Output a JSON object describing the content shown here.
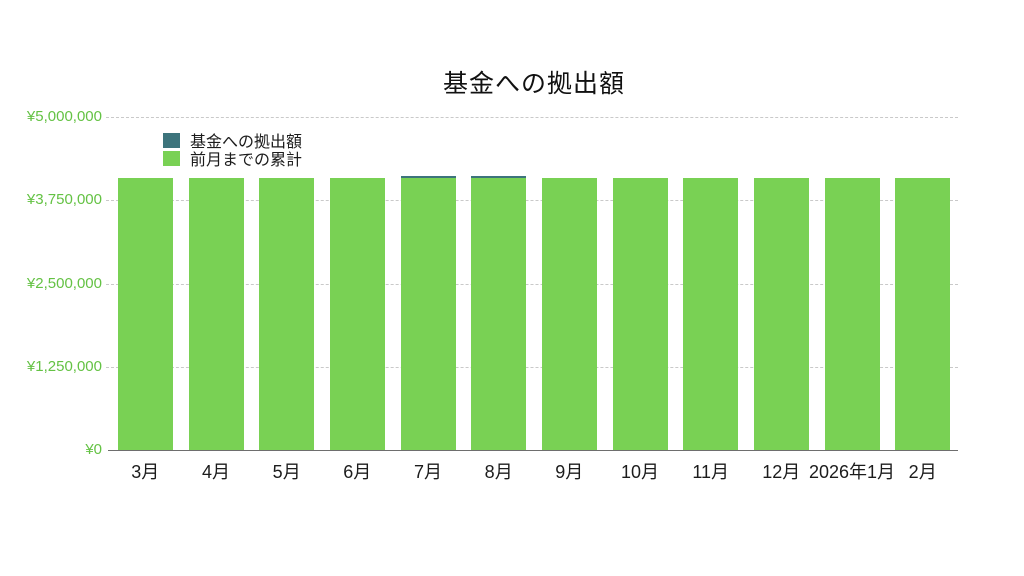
{
  "chart": {
    "title": "基金への拠出額",
    "legend": [
      {
        "label": "基金への拠出額",
        "color": "#3d747c"
      },
      {
        "label": "前月までの累計",
        "color": "#79d154"
      }
    ],
    "y_ticks": [
      "¥5,000,000",
      "¥3,750,000",
      "¥2,500,000",
      "¥1,250,000",
      "¥0"
    ]
  },
  "colors": {
    "bar_green": "#79d154",
    "bar_teal": "#3d747c",
    "axis_label_green": "#64c244",
    "grid": "#c9c9c9",
    "axis_line": "#6e6e6e",
    "text": "#1c1c1c"
  },
  "chart_data": {
    "type": "bar",
    "stacked": true,
    "title": "基金への拠出額",
    "categories": [
      "3月",
      "4月",
      "5月",
      "6月",
      "7月",
      "8月",
      "9月",
      "10月",
      "11月",
      "12月",
      "2026年1月",
      "2月"
    ],
    "series": [
      {
        "name": "前月までの累計",
        "color": "#79d154",
        "values": [
          4080000,
          4080000,
          4080000,
          4080000,
          4080000,
          4080000,
          4080000,
          4080000,
          4080000,
          4080000,
          4080000,
          4080000
        ]
      },
      {
        "name": "基金への拠出額",
        "color": "#3d747c",
        "values": [
          0,
          0,
          0,
          0,
          40000,
          40000,
          0,
          0,
          0,
          0,
          0,
          0
        ]
      }
    ],
    "ylim": [
      0,
      5000000
    ],
    "y_tick_interval": 1250000,
    "xlabel": "",
    "ylabel": "",
    "grid": "horizontal-dashed-behind-bars",
    "legend_position": "top-left-inside-plot"
  }
}
